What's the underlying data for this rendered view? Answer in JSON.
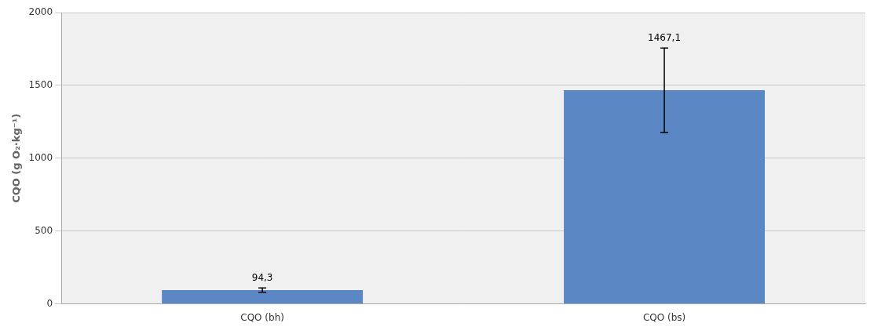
{
  "chart_data": {
    "type": "bar",
    "categories": [
      "CQO (bh)",
      "CQO (bs)"
    ],
    "values": [
      94.3,
      1467.1
    ],
    "value_labels": [
      "94,3",
      "1467,1"
    ],
    "errors": [
      15.0,
      290.0
    ],
    "color": "#5B87C5",
    "ylabel": "CQO (g O₂·kg⁻¹)",
    "ylim": [
      0,
      2000
    ],
    "yticks": [
      0,
      500,
      1000,
      1500,
      2000
    ],
    "grid": true,
    "data_labels": true
  }
}
